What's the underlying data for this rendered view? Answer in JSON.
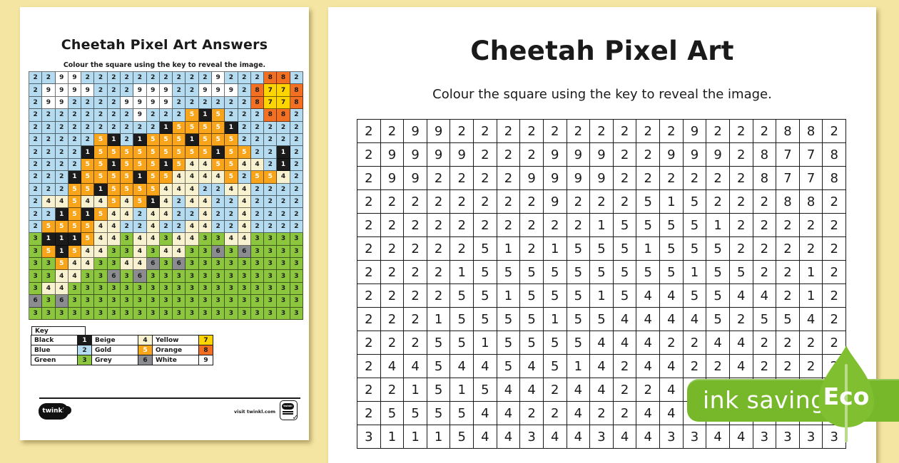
{
  "left_page": {
    "title": "Cheetah Pixel Art Answers",
    "subtitle": "Colour the square using the key to reveal the image.",
    "key": {
      "header": "Key",
      "columns": [
        [
          {
            "label": "Black",
            "num": "1"
          },
          {
            "label": "Blue",
            "num": "2"
          },
          {
            "label": "Green",
            "num": "3"
          }
        ],
        [
          {
            "label": "Beige",
            "num": "4"
          },
          {
            "label": "Gold",
            "num": "5"
          },
          {
            "label": "Grey",
            "num": "6"
          }
        ],
        [
          {
            "label": "Yellow",
            "num": "7"
          },
          {
            "label": "Orange",
            "num": "8"
          },
          {
            "label": "White",
            "num": "9"
          }
        ]
      ]
    },
    "footer": {
      "brand": "twinkl",
      "visit": "visit twinkl.com",
      "stamp_brand": "twinkl",
      "checkmark": "✓"
    }
  },
  "right_page": {
    "title": "Cheetah Pixel Art",
    "subtitle": "Colour the square using the key to reveal the image.",
    "visible_rows": 14
  },
  "grid": {
    "columns": 21,
    "rows": 20,
    "cells": [
      [
        2,
        2,
        9,
        9,
        2,
        2,
        2,
        2,
        2,
        2,
        2,
        2,
        2,
        2,
        9,
        2,
        2,
        2,
        8,
        8,
        2
      ],
      [
        2,
        9,
        9,
        9,
        9,
        2,
        2,
        2,
        9,
        9,
        9,
        2,
        2,
        9,
        9,
        9,
        2,
        8,
        7,
        7,
        8
      ],
      [
        2,
        9,
        9,
        2,
        2,
        2,
        2,
        9,
        9,
        9,
        9,
        2,
        2,
        2,
        2,
        2,
        2,
        8,
        7,
        7,
        8
      ],
      [
        2,
        2,
        2,
        2,
        2,
        2,
        2,
        2,
        9,
        2,
        2,
        2,
        5,
        1,
        5,
        2,
        2,
        2,
        8,
        8,
        2
      ],
      [
        2,
        2,
        2,
        2,
        2,
        2,
        2,
        2,
        2,
        2,
        1,
        5,
        5,
        5,
        5,
        1,
        2,
        2,
        2,
        2,
        2
      ],
      [
        2,
        2,
        2,
        2,
        2,
        5,
        1,
        2,
        1,
        5,
        5,
        5,
        1,
        5,
        5,
        5,
        2,
        2,
        2,
        2,
        2
      ],
      [
        2,
        2,
        2,
        2,
        1,
        5,
        5,
        5,
        5,
        5,
        5,
        5,
        5,
        5,
        1,
        5,
        5,
        2,
        2,
        1,
        2
      ],
      [
        2,
        2,
        2,
        2,
        5,
        5,
        1,
        5,
        5,
        5,
        1,
        5,
        4,
        4,
        5,
        5,
        4,
        4,
        2,
        1,
        2
      ],
      [
        2,
        2,
        2,
        1,
        5,
        5,
        5,
        5,
        1,
        5,
        5,
        4,
        4,
        4,
        4,
        5,
        2,
        5,
        5,
        4,
        2
      ],
      [
        2,
        2,
        2,
        5,
        5,
        1,
        5,
        5,
        5,
        5,
        4,
        4,
        4,
        2,
        2,
        4,
        4,
        2,
        2,
        2,
        2
      ],
      [
        2,
        4,
        4,
        5,
        4,
        4,
        5,
        4,
        5,
        1,
        4,
        2,
        4,
        4,
        2,
        2,
        4,
        2,
        2,
        2,
        2
      ],
      [
        2,
        2,
        1,
        5,
        1,
        5,
        4,
        4,
        2,
        4,
        4,
        2,
        2,
        4,
        2,
        2,
        4,
        2,
        2,
        2,
        2
      ],
      [
        2,
        5,
        5,
        5,
        5,
        4,
        4,
        2,
        2,
        4,
        2,
        2,
        4,
        4,
        2,
        2,
        4,
        2,
        2,
        2,
        2
      ],
      [
        3,
        1,
        1,
        1,
        5,
        4,
        4,
        3,
        4,
        4,
        3,
        4,
        4,
        3,
        3,
        4,
        4,
        3,
        3,
        3,
        3
      ],
      [
        3,
        5,
        1,
        5,
        4,
        4,
        3,
        3,
        4,
        3,
        4,
        4,
        3,
        3,
        6,
        3,
        6,
        3,
        3,
        3,
        3
      ],
      [
        3,
        3,
        5,
        4,
        4,
        3,
        3,
        4,
        4,
        6,
        3,
        6,
        3,
        3,
        3,
        3,
        3,
        3,
        3,
        3,
        3
      ],
      [
        3,
        3,
        4,
        4,
        3,
        3,
        6,
        3,
        6,
        3,
        3,
        3,
        3,
        3,
        3,
        3,
        3,
        3,
        3,
        3,
        3
      ],
      [
        3,
        4,
        4,
        3,
        3,
        3,
        3,
        3,
        3,
        3,
        3,
        3,
        3,
        3,
        3,
        3,
        3,
        3,
        3,
        3,
        3
      ],
      [
        6,
        3,
        6,
        3,
        3,
        3,
        3,
        3,
        3,
        3,
        3,
        3,
        3,
        3,
        3,
        3,
        3,
        3,
        3,
        3,
        3
      ],
      [
        3,
        3,
        3,
        3,
        3,
        3,
        3,
        3,
        3,
        3,
        3,
        3,
        3,
        3,
        3,
        3,
        3,
        3,
        3,
        3,
        3
      ]
    ]
  },
  "palette": {
    "1": {
      "name": "Black",
      "color": "#1b1b1b",
      "text": "#ffffff"
    },
    "2": {
      "name": "Blue",
      "color": "#b4dbf0",
      "text": "#1b1b1b"
    },
    "3": {
      "name": "Green",
      "color": "#8cc63e",
      "text": "#1b1b1b"
    },
    "4": {
      "name": "Beige",
      "color": "#f8f2d0",
      "text": "#1b1b1b"
    },
    "5": {
      "name": "Gold",
      "color": "#f9a51c",
      "text": "#ffffff"
    },
    "6": {
      "name": "Grey",
      "color": "#8a8c8f",
      "text": "#1b1b1b"
    },
    "7": {
      "name": "Yellow",
      "color": "#ffd500",
      "text": "#1b1b1b"
    },
    "8": {
      "name": "Orange",
      "color": "#f36f21",
      "text": "#1b1b1b"
    },
    "9": {
      "name": "White",
      "color": "#ffffff",
      "text": "#1b1b1b"
    }
  },
  "eco_badge": {
    "label": "ink saving",
    "eco": "Eco",
    "badge_color": "#76b82a",
    "leaf_color": "#80bf2f",
    "stem_color": "#b9db8a"
  }
}
